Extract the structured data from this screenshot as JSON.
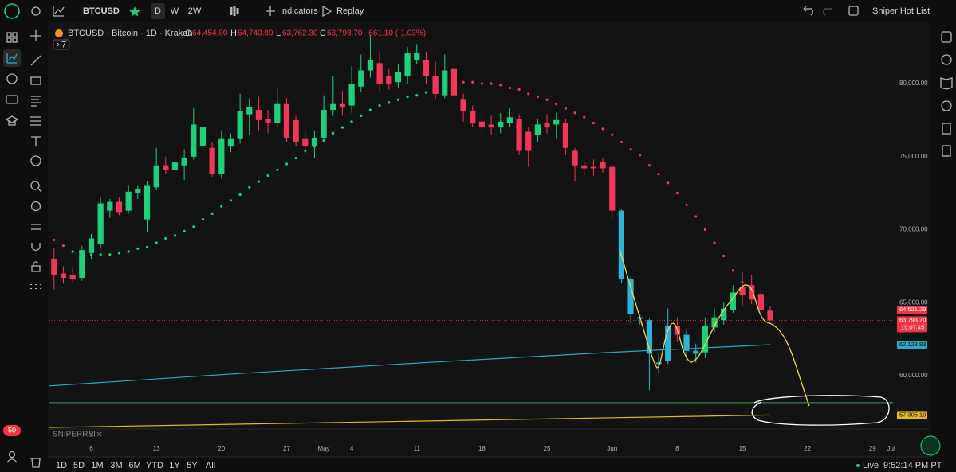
{
  "toolbar": {
    "symbol": "BTCUSD",
    "intervals": [
      "D",
      "W",
      "2W"
    ],
    "indicators": "Indicators",
    "replay": "Replay",
    "watchlist": "Sniper Hot List"
  },
  "legend": {
    "title": "BTCUSD · Bitcoin · 1D · Kraken",
    "o_label": "O",
    "o": "64,454.80",
    "h_label": "H",
    "h": "64,740.90",
    "l_label": "L",
    "l": "63,762.30",
    "c_label": "C",
    "c": "63,793.70",
    "change": "-661.10 (-1.03%)",
    "collapse": "7"
  },
  "pane_label": "SNIPERRSI",
  "notification_badge": "50",
  "ranges": [
    "1D",
    "5D",
    "1M",
    "3M",
    "6M",
    "YTD",
    "1Y",
    "5Y",
    "All"
  ],
  "status": {
    "live": "Live",
    "time": "9:52:14 PM PT"
  },
  "chart_data": {
    "type": "candlestick",
    "xlim": [
      -0.5,
      90.2
    ],
    "ylim": [
      56400,
      84090
    ],
    "xticks": [
      {
        "value": 4,
        "label": "6"
      },
      {
        "value": 11,
        "label": "13"
      },
      {
        "value": 18,
        "label": "20"
      },
      {
        "value": 25,
        "label": "27"
      },
      {
        "value": 29,
        "label": "May"
      },
      {
        "value": 32,
        "label": "4"
      },
      {
        "value": 39,
        "label": "11"
      },
      {
        "value": 46,
        "label": "18"
      },
      {
        "value": 53,
        "label": "25"
      },
      {
        "value": 60,
        "label": "Jun"
      },
      {
        "value": 67,
        "label": "8"
      },
      {
        "value": 74,
        "label": "15"
      },
      {
        "value": 81,
        "label": "22"
      },
      {
        "value": 88,
        "label": "29"
      },
      {
        "value": 90,
        "label": "Jul"
      }
    ],
    "yticks": [
      {
        "value": 60000,
        "label": "60,000.00"
      },
      {
        "value": 65000,
        "label": "65,000.00"
      },
      {
        "value": 70000,
        "label": "70,000.00"
      },
      {
        "value": 75000,
        "label": "75,000.00"
      },
      {
        "value": 80000,
        "label": "80,000.00"
      }
    ],
    "open": [
      68000,
      67000,
      66900,
      66700,
      68400,
      69000,
      71300,
      71900,
      71300,
      72500,
      70700,
      72900,
      74400,
      74100,
      74400,
      75000,
      75700,
      75600,
      73800,
      75700,
      76200,
      77900,
      78200,
      77600,
      77300,
      78600,
      77500,
      76200,
      75700,
      76300,
      78200,
      78600,
      78500,
      79800,
      80900,
      81400,
      80500,
      80100,
      80500,
      81600,
      81600,
      80500,
      79200,
      81000,
      78900,
      78100,
      77400,
      77200,
      77000,
      77300,
      77600,
      76700,
      76500,
      77300,
      77200,
      77300,
      75400,
      74400,
      74300,
      74600,
      74300,
      71300,
      66600,
      64000,
      63800,
      60900,
      61000,
      63400,
      62800,
      61700,
      61600,
      63300,
      63800,
      64500,
      66100,
      66200,
      65600,
      64454.8
    ],
    "high": [
      68700,
      67500,
      67400,
      68900,
      69700,
      72200,
      72100,
      72200,
      73000,
      73000,
      73300,
      75600,
      75000,
      75200,
      75500,
      78300,
      77700,
      76000,
      76800,
      76600,
      79300,
      79000,
      79100,
      78200,
      79700,
      79000,
      77800,
      76700,
      76800,
      79200,
      80500,
      79500,
      81200,
      82000,
      83300,
      82200,
      81000,
      81300,
      82500,
      82700,
      82200,
      81500,
      82000,
      81400,
      79300,
      78500,
      78300,
      77800,
      78000,
      78300,
      77900,
      77000,
      77600,
      77900,
      78000,
      77600,
      75600,
      74700,
      74800,
      74900,
      74500,
      71400,
      66800,
      64200,
      63900,
      61500,
      64600,
      64000,
      63200,
      62200,
      64000,
      64600,
      65000,
      66200,
      67100,
      66900,
      66000,
      64740.9
    ],
    "low": [
      65900,
      66300,
      66400,
      66500,
      68000,
      68700,
      70800,
      71000,
      71100,
      72100,
      69800,
      72700,
      73800,
      73700,
      73400,
      74800,
      75200,
      73600,
      73500,
      75300,
      75900,
      76500,
      76800,
      76600,
      77000,
      76000,
      75700,
      75200,
      74900,
      76000,
      77800,
      77800,
      78000,
      79400,
      80400,
      79500,
      79600,
      79700,
      80000,
      81300,
      80000,
      78900,
      79000,
      78900,
      77400,
      77000,
      76100,
      76500,
      76600,
      77000,
      75100,
      74300,
      76000,
      76600,
      76200,
      75100,
      73300,
      73600,
      73700,
      73900,
      70700,
      66300,
      63600,
      63500,
      59000,
      60200,
      60800,
      62300,
      61000,
      60900,
      61200,
      63000,
      63500,
      64300,
      64800,
      64900,
      64100,
      63762.3
    ],
    "close": [
      66900,
      66700,
      66600,
      68600,
      69400,
      71800,
      71900,
      71200,
      72600,
      72800,
      73000,
      74400,
      74100,
      74600,
      74900,
      77200,
      77000,
      73800,
      76200,
      76200,
      78100,
      78400,
      77500,
      77300,
      78600,
      76300,
      76000,
      75700,
      76300,
      78200,
      78600,
      78400,
      80000,
      80900,
      81600,
      80000,
      80000,
      80800,
      82100,
      82100,
      80500,
      79300,
      80900,
      79200,
      78100,
      77300,
      77000,
      77000,
      77400,
      77700,
      75400,
      75400,
      77200,
      77000,
      77500,
      75600,
      74400,
      74200,
      74200,
      74200,
      71300,
      66600,
      64200,
      63900,
      61500,
      60800,
      63400,
      62800,
      61700,
      61500,
      63400,
      64000,
      64600,
      65700,
      65500,
      65200,
      64500,
      63793.7
    ],
    "colors": [
      "#f23659",
      "#f23659",
      "#f23659",
      "#1fcf7c",
      "#1fcf7c",
      "#1fcf7c",
      "#1fcf7c",
      "#f23659",
      "#1fcf7c",
      "#1fcf7c",
      "#1fcf7c",
      "#1fcf7c",
      "#f23659",
      "#1fcf7c",
      "#1fcf7c",
      "#1fcf7c",
      "#1fcf7c",
      "#f23659",
      "#1fcf7c",
      "#1fcf7c",
      "#1fcf7c",
      "#1fcf7c",
      "#f23659",
      "#f23659",
      "#1fcf7c",
      "#f23659",
      "#f23659",
      "#f23659",
      "#1fcf7c",
      "#1fcf7c",
      "#1fcf7c",
      "#f23659",
      "#1fcf7c",
      "#1fcf7c",
      "#1fcf7c",
      "#f23659",
      "#f23659",
      "#1fcf7c",
      "#1fcf7c",
      "#1fcf7c",
      "#f23659",
      "#f23659",
      "#1fcf7c",
      "#f23659",
      "#f23659",
      "#f23659",
      "#f23659",
      "#f23659",
      "#1fcf7c",
      "#1fcf7c",
      "#f23659",
      "#f23659",
      "#1fcf7c",
      "#f23659",
      "#1fcf7c",
      "#f23659",
      "#f23659",
      "#f23659",
      "#f23659",
      "#f23659",
      "#f23659",
      "#2cb3d6",
      "#2cb3d6",
      "#2cb3d6",
      "#2cb3d6",
      "#2cb3d6",
      "#2cb3d6",
      "#f23659",
      "#2cb3d6",
      "#2cb3d6",
      "#1fcf7c",
      "#1fcf7c",
      "#1fcf7c",
      "#1fcf7c",
      "#f23659",
      "#f23659",
      "#f23659",
      "#f23659"
    ],
    "sar": [
      {
        "color": "#1fcf7c",
        "values": [
          null,
          null,
          68500,
          68400,
          68300,
          68300,
          68300,
          68400,
          68500,
          68700,
          68800,
          69100,
          69400,
          69600,
          69900,
          70200,
          70700,
          71100,
          71600,
          72000,
          72400,
          72900,
          73300,
          73700,
          74100,
          74500,
          74900,
          75400,
          75700,
          76100,
          76600,
          77000,
          77400,
          77800,
          78200,
          78500,
          78700,
          78900,
          79100,
          79200,
          79400,
          79600,
          null,
          null,
          null,
          null,
          null,
          null,
          null,
          null,
          null,
          null,
          null,
          null,
          null,
          null,
          null,
          null,
          null,
          null,
          null,
          null,
          null,
          null,
          null,
          null,
          null,
          null,
          null,
          null,
          null,
          null,
          null,
          null,
          null,
          null,
          null,
          null
        ]
      },
      {
        "color": "#f23659",
        "values": [
          69300,
          68900,
          null,
          null,
          null,
          null,
          null,
          null,
          null,
          null,
          null,
          null,
          null,
          null,
          null,
          null,
          null,
          null,
          null,
          null,
          null,
          null,
          null,
          null,
          null,
          null,
          null,
          null,
          null,
          null,
          null,
          null,
          null,
          null,
          null,
          null,
          null,
          null,
          null,
          null,
          null,
          null,
          null,
          null,
          80100,
          80100,
          80000,
          80000,
          79900,
          79700,
          79600,
          79300,
          79100,
          78900,
          78600,
          78300,
          78000,
          77700,
          77300,
          76900,
          76500,
          76000,
          75500,
          75100,
          74400,
          73800,
          73200,
          72500,
          71700,
          70900,
          70000,
          69100,
          68200,
          67200,
          66400,
          null,
          null,
          null
        ]
      }
    ],
    "lines": [
      {
        "color": "#2ca9c9",
        "x": [
          -0.5,
          20,
          40,
          60,
          77
        ],
        "values": [
          59300,
          60150,
          60900,
          61600,
          62123.83
        ]
      },
      {
        "color": "#e3b924",
        "x": [
          -0.5,
          77
        ],
        "values": [
          56450,
          57305.1
        ]
      }
    ],
    "hline": {
      "value": 58150,
      "color": "#3a9e6a"
    },
    "price_labels": [
      {
        "value": 64521.29,
        "label": "64,521.29",
        "color": "#f23645"
      },
      {
        "value": 63793.7,
        "label": "63,793.70",
        "sub": "19:07:45",
        "color": "#f23645"
      },
      {
        "value": 62123.83,
        "label": "62,123.83",
        "color": "#2ca9c9"
      },
      {
        "value": 57305.1,
        "label": "57,305.10",
        "color": "#e3b924"
      }
    ]
  }
}
